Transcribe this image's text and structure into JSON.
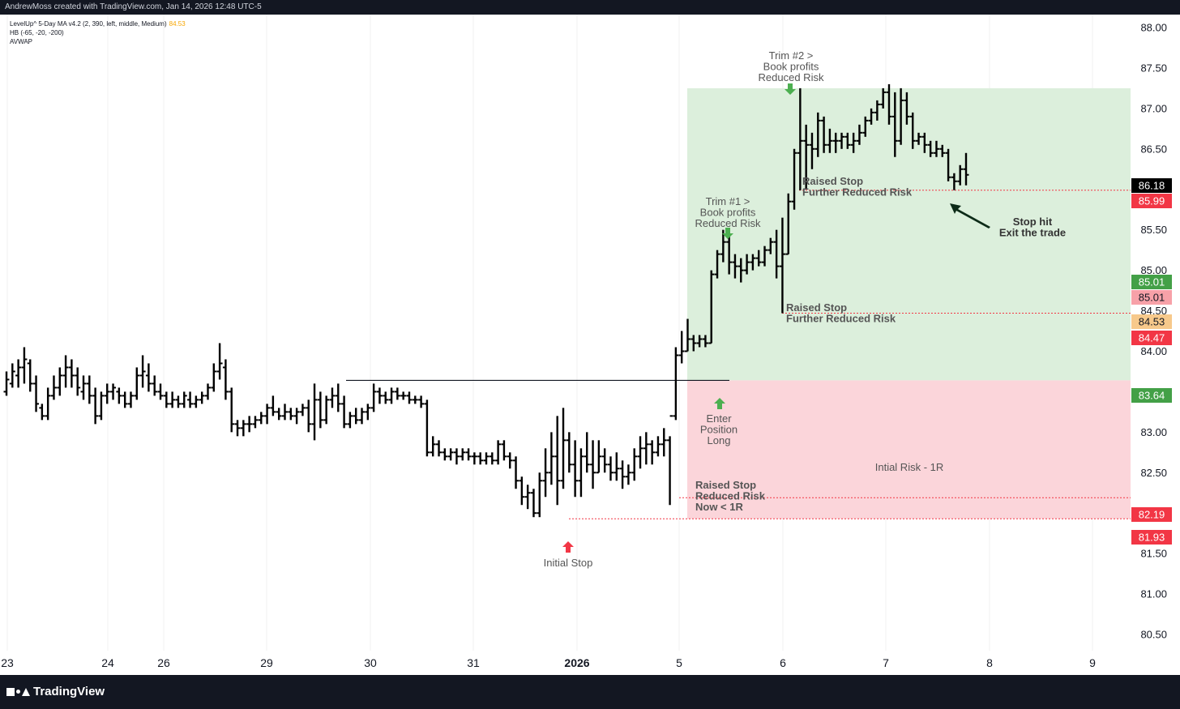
{
  "header": {
    "credit": "AndrewMoss created with TradingView.com, Jan 14, 2026 12:48 UTC-5"
  },
  "indicators": [
    {
      "label": "LevelUp^ 5-Day MA v4.2 (2, 390, left, middle, Medium)",
      "value": "84.53"
    },
    {
      "label": "HB (-65, -20, -200)",
      "value": ""
    },
    {
      "label": "AVWAP",
      "value": ""
    }
  ],
  "brand": {
    "name": "TradingView"
  },
  "colors": {
    "profit_zone": "#dcefdc",
    "risk_zone": "#fbd5da",
    "green_badge": "#43a047",
    "red_badge": "#f23645",
    "pink_badge": "#f7a1a8",
    "orange_badge": "#f7c98b",
    "black_badge": "#000000",
    "arrow_green": "#4caf50",
    "arrow_red": "#f23645"
  },
  "chart_data": {
    "type": "ohlc",
    "y_axis": {
      "ticks": [
        "88.00",
        "87.50",
        "87.00",
        "86.50",
        "86.00",
        "85.50",
        "85.00",
        "84.50",
        "84.00",
        "83.50",
        "83.00",
        "82.50",
        "82.00",
        "81.50",
        "81.00",
        "80.50"
      ],
      "ylim": [
        80.35,
        88.1
      ]
    },
    "x_axis": {
      "ticks": [
        "23",
        "24",
        "26",
        "29",
        "30",
        "31",
        "2026",
        "5",
        "6",
        "7",
        "8",
        "9"
      ],
      "bold_tick": "2026"
    },
    "price_labels": [
      {
        "value": "86.18",
        "color": "black"
      },
      {
        "value": "85.99",
        "color": "red"
      },
      {
        "value": "85.01",
        "color": "green"
      },
      {
        "value": "85.01",
        "color": "pink"
      },
      {
        "value": "84.53",
        "color": "orange"
      },
      {
        "value": "84.47",
        "color": "red"
      },
      {
        "value": "83.64",
        "color": "green"
      },
      {
        "value": "82.19",
        "color": "red"
      },
      {
        "value": "81.93",
        "color": "red"
      }
    ],
    "position": {
      "entry": 83.64,
      "target": 87.25,
      "initial_stop": 81.93
    },
    "stops": [
      {
        "price": 81.93
      },
      {
        "price": 82.19
      },
      {
        "price": 84.47
      },
      {
        "price": 85.99
      }
    ],
    "resistance": 83.64,
    "annotations": [
      {
        "text": "Initial Stop",
        "arrow": "up-red"
      },
      {
        "text": "Enter\nPosition\nLong",
        "arrow": "up-green"
      },
      {
        "text": "Trim #1 >\nBook profits\nReduced Risk",
        "arrow": "down-green"
      },
      {
        "text": "Trim #2 >\nBook profits\nReduced Risk",
        "arrow": "down-green"
      },
      {
        "text": "Raised Stop\nReduced Risk\nNow < 1R"
      },
      {
        "text": "Raised Stop\nFurther Reduced Risk"
      },
      {
        "text": "Raised Stop\nFurther Reduced Risk"
      },
      {
        "text": "Stop hit\nExit the trade",
        "arrow": "pointer"
      },
      {
        "text": "Intial Risk - 1R"
      }
    ],
    "bars": [
      [
        83.5,
        83.75,
        83.45,
        83.65
      ],
      [
        83.6,
        83.85,
        83.55,
        83.75
      ],
      [
        83.7,
        83.9,
        83.55,
        83.8
      ],
      [
        83.8,
        84.05,
        83.6,
        83.9
      ],
      [
        83.85,
        83.9,
        83.5,
        83.6
      ],
      [
        83.6,
        83.7,
        83.25,
        83.35
      ],
      [
        83.3,
        83.35,
        83.15,
        83.2
      ],
      [
        83.2,
        83.55,
        83.15,
        83.45
      ],
      [
        83.45,
        83.7,
        83.4,
        83.55
      ],
      [
        83.55,
        83.8,
        83.45,
        83.7
      ],
      [
        83.7,
        83.95,
        83.55,
        83.8
      ],
      [
        83.8,
        83.9,
        83.55,
        83.7
      ],
      [
        83.7,
        83.8,
        83.45,
        83.55
      ],
      [
        83.5,
        83.7,
        83.4,
        83.6
      ],
      [
        83.6,
        83.7,
        83.35,
        83.45
      ],
      [
        83.45,
        83.55,
        83.1,
        83.2
      ],
      [
        83.2,
        83.5,
        83.15,
        83.45
      ],
      [
        83.45,
        83.6,
        83.35,
        83.5
      ],
      [
        83.5,
        83.6,
        83.4,
        83.55
      ],
      [
        83.5,
        83.55,
        83.35,
        83.45
      ],
      [
        83.45,
        83.5,
        83.3,
        83.35
      ],
      [
        83.35,
        83.5,
        83.3,
        83.45
      ],
      [
        83.45,
        83.8,
        83.4,
        83.7
      ],
      [
        83.7,
        83.95,
        83.55,
        83.75
      ],
      [
        83.7,
        83.85,
        83.5,
        83.6
      ],
      [
        83.6,
        83.7,
        83.45,
        83.5
      ],
      [
        83.5,
        83.6,
        83.4,
        83.45
      ],
      [
        83.45,
        83.5,
        83.3,
        83.35
      ],
      [
        83.35,
        83.5,
        83.3,
        83.4
      ],
      [
        83.4,
        83.45,
        83.3,
        83.35
      ],
      [
        83.35,
        83.5,
        83.3,
        83.45
      ],
      [
        83.4,
        83.5,
        83.3,
        83.35
      ],
      [
        83.35,
        83.45,
        83.3,
        83.4
      ],
      [
        83.4,
        83.5,
        83.35,
        83.45
      ],
      [
        83.45,
        83.6,
        83.4,
        83.55
      ],
      [
        83.55,
        83.85,
        83.5,
        83.75
      ],
      [
        83.75,
        84.1,
        83.65,
        83.85
      ],
      [
        83.8,
        83.9,
        83.4,
        83.5
      ],
      [
        83.5,
        83.55,
        83.0,
        83.1
      ],
      [
        83.1,
        83.15,
        82.95,
        83.05
      ],
      [
        83.05,
        83.15,
        82.95,
        83.1
      ],
      [
        83.1,
        83.2,
        83.0,
        83.1
      ],
      [
        83.1,
        83.2,
        83.05,
        83.15
      ],
      [
        83.15,
        83.25,
        83.1,
        83.2
      ],
      [
        83.2,
        83.35,
        83.1,
        83.3
      ],
      [
        83.3,
        83.45,
        83.2,
        83.25
      ],
      [
        83.25,
        83.3,
        83.15,
        83.2
      ],
      [
        83.2,
        83.35,
        83.15,
        83.25
      ],
      [
        83.25,
        83.3,
        83.15,
        83.2
      ],
      [
        83.2,
        83.3,
        83.1,
        83.25
      ],
      [
        83.25,
        83.35,
        83.2,
        83.3
      ],
      [
        83.3,
        83.4,
        83.0,
        83.1
      ],
      [
        83.1,
        83.6,
        82.9,
        83.4
      ],
      [
        83.4,
        83.5,
        83.05,
        83.15
      ],
      [
        83.15,
        83.45,
        83.1,
        83.4
      ],
      [
        83.4,
        83.55,
        83.3,
        83.45
      ],
      [
        83.45,
        83.6,
        83.25,
        83.35
      ],
      [
        83.35,
        83.45,
        83.05,
        83.1
      ],
      [
        83.1,
        83.25,
        83.05,
        83.2
      ],
      [
        83.2,
        83.3,
        83.1,
        83.15
      ],
      [
        83.15,
        83.3,
        83.1,
        83.25
      ],
      [
        83.25,
        83.35,
        83.15,
        83.3
      ],
      [
        83.3,
        83.6,
        83.25,
        83.5
      ],
      [
        83.5,
        83.55,
        83.35,
        83.45
      ],
      [
        83.45,
        83.5,
        83.35,
        83.4
      ],
      [
        83.4,
        83.55,
        83.35,
        83.5
      ],
      [
        83.5,
        83.55,
        83.4,
        83.45
      ],
      [
        83.45,
        83.5,
        83.4,
        83.45
      ],
      [
        83.45,
        83.5,
        83.35,
        83.4
      ],
      [
        83.4,
        83.45,
        83.35,
        83.4
      ],
      [
        83.4,
        83.45,
        83.3,
        83.35
      ],
      [
        83.35,
        83.4,
        82.7,
        82.75
      ],
      [
        82.75,
        82.95,
        82.7,
        82.85
      ],
      [
        82.85,
        82.9,
        82.7,
        82.75
      ],
      [
        82.75,
        82.8,
        82.65,
        82.7
      ],
      [
        82.7,
        82.8,
        82.65,
        82.75
      ],
      [
        82.75,
        82.8,
        82.6,
        82.7
      ],
      [
        82.7,
        82.8,
        82.65,
        82.75
      ],
      [
        82.75,
        82.8,
        82.65,
        82.7
      ],
      [
        82.7,
        82.75,
        82.6,
        82.7
      ],
      [
        82.7,
        82.75,
        82.6,
        82.65
      ],
      [
        82.65,
        82.75,
        82.6,
        82.7
      ],
      [
        82.7,
        82.75,
        82.6,
        82.65
      ],
      [
        82.65,
        82.9,
        82.6,
        82.85
      ],
      [
        82.85,
        82.9,
        82.65,
        82.7
      ],
      [
        82.7,
        82.75,
        82.55,
        82.65
      ],
      [
        82.65,
        82.7,
        82.3,
        82.4
      ],
      [
        82.4,
        82.45,
        82.1,
        82.2
      ],
      [
        82.2,
        82.35,
        82.05,
        82.25
      ],
      [
        82.25,
        82.3,
        81.95,
        82.0
      ],
      [
        82.0,
        82.5,
        81.95,
        82.4
      ],
      [
        82.4,
        82.8,
        82.2,
        82.5
      ],
      [
        82.5,
        83.0,
        82.35,
        82.7
      ],
      [
        82.7,
        83.2,
        82.1,
        82.4
      ],
      [
        82.4,
        83.3,
        82.3,
        82.9
      ],
      [
        82.9,
        83.0,
        82.5,
        82.6
      ],
      [
        82.6,
        82.9,
        82.2,
        82.4
      ],
      [
        82.4,
        82.8,
        82.2,
        82.7
      ],
      [
        82.7,
        83.0,
        82.5,
        82.6
      ],
      [
        82.6,
        82.9,
        82.3,
        82.5
      ],
      [
        82.5,
        82.9,
        82.5,
        82.7
      ],
      [
        82.7,
        82.8,
        82.5,
        82.6
      ],
      [
        82.6,
        82.7,
        82.4,
        82.5
      ],
      [
        82.5,
        82.75,
        82.4,
        82.55
      ],
      [
        82.55,
        82.65,
        82.3,
        82.45
      ],
      [
        82.45,
        82.6,
        82.35,
        82.5
      ],
      [
        82.5,
        82.8,
        82.4,
        82.7
      ],
      [
        82.7,
        82.95,
        82.55,
        82.8
      ],
      [
        82.8,
        83.0,
        82.6,
        82.85
      ],
      [
        82.85,
        82.9,
        82.6,
        82.75
      ],
      [
        82.75,
        82.95,
        82.7,
        82.85
      ],
      [
        82.85,
        83.05,
        82.7,
        82.9
      ],
      [
        82.9,
        82.95,
        82.1,
        83.2
      ],
      [
        83.2,
        84.05,
        83.15,
        83.95
      ],
      [
        83.95,
        84.25,
        83.85,
        84.0
      ],
      [
        84.0,
        84.4,
        84.0,
        84.15
      ],
      [
        84.15,
        84.2,
        84.0,
        84.1
      ],
      [
        84.1,
        84.2,
        84.05,
        84.15
      ],
      [
        84.15,
        84.2,
        84.05,
        84.1
      ],
      [
        84.1,
        85.0,
        84.1,
        84.95
      ],
      [
        84.95,
        85.25,
        84.9,
        85.2
      ],
      [
        85.2,
        85.5,
        85.1,
        85.35
      ],
      [
        85.35,
        85.45,
        84.95,
        85.1
      ],
      [
        85.1,
        85.2,
        84.9,
        85.05
      ],
      [
        85.05,
        85.15,
        84.85,
        85.0
      ],
      [
        85.0,
        85.2,
        84.95,
        85.1
      ],
      [
        85.1,
        85.2,
        85.0,
        85.15
      ],
      [
        85.15,
        85.25,
        85.05,
        85.1
      ],
      [
        85.1,
        85.3,
        85.05,
        85.25
      ],
      [
        85.25,
        85.4,
        85.2,
        85.35
      ],
      [
        85.35,
        85.5,
        84.9,
        85.05
      ],
      [
        85.05,
        85.65,
        84.47,
        85.2
      ],
      [
        85.2,
        85.95,
        85.2,
        85.85
      ],
      [
        85.85,
        86.5,
        85.75,
        86.45
      ],
      [
        86.45,
        87.25,
        85.99,
        86.6
      ],
      [
        86.6,
        86.8,
        86.0,
        86.55
      ],
      [
        86.55,
        86.7,
        86.25,
        86.5
      ],
      [
        86.5,
        86.95,
        86.4,
        86.85
      ],
      [
        86.85,
        86.9,
        86.45,
        86.55
      ],
      [
        86.55,
        86.75,
        86.45,
        86.6
      ],
      [
        86.6,
        86.7,
        86.45,
        86.6
      ],
      [
        86.6,
        86.7,
        86.5,
        86.65
      ],
      [
        86.65,
        86.7,
        86.5,
        86.55
      ],
      [
        86.55,
        86.7,
        86.45,
        86.6
      ],
      [
        86.6,
        86.8,
        86.55,
        86.7
      ],
      [
        86.7,
        86.9,
        86.65,
        86.85
      ],
      [
        86.85,
        87.0,
        86.8,
        86.95
      ],
      [
        86.95,
        87.1,
        86.85,
        87.05
      ],
      [
        87.05,
        87.25,
        87.0,
        87.2
      ],
      [
        87.2,
        87.3,
        86.8,
        86.9
      ],
      [
        86.9,
        87.2,
        86.4,
        86.6
      ],
      [
        86.6,
        87.25,
        86.55,
        87.1
      ],
      [
        87.1,
        87.2,
        86.8,
        86.9
      ],
      [
        86.9,
        86.95,
        86.5,
        86.6
      ],
      [
        86.6,
        86.7,
        86.55,
        86.65
      ],
      [
        86.65,
        86.7,
        86.45,
        86.55
      ],
      [
        86.55,
        86.6,
        86.4,
        86.45
      ],
      [
        86.45,
        86.6,
        86.4,
        86.5
      ],
      [
        86.5,
        86.55,
        86.4,
        86.45
      ],
      [
        86.45,
        86.5,
        86.1,
        86.15
      ],
      [
        86.15,
        86.2,
        85.99,
        86.1
      ],
      [
        86.1,
        86.3,
        86.05,
        86.25
      ],
      [
        86.25,
        86.45,
        86.05,
        86.18
      ]
    ]
  }
}
